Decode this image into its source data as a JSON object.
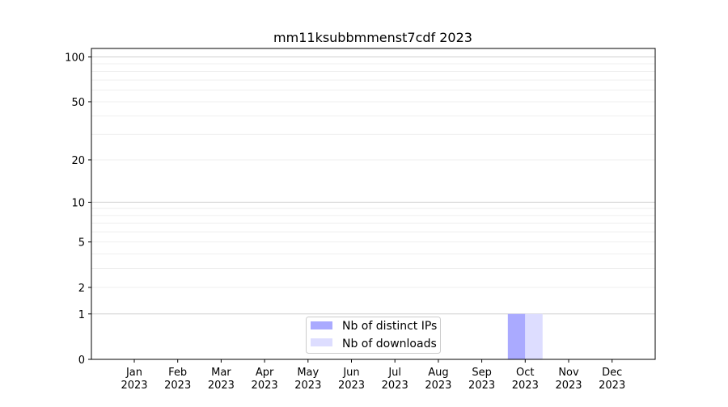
{
  "chart_data": {
    "type": "bar",
    "title": "mm11ksubbmmenst7cdf 2023",
    "xlabel": "",
    "ylabel": "",
    "y_scale": "log(1+y)",
    "ylim": [
      0,
      114
    ],
    "y_ticks": [
      0,
      1,
      2,
      5,
      10,
      20,
      50,
      100
    ],
    "grid": true,
    "legend_position": "lower-center",
    "categories": [
      "Jan\n2023",
      "Feb\n2023",
      "Mar\n2023",
      "Apr\n2023",
      "May\n2023",
      "Jun\n2023",
      "Jul\n2023",
      "Aug\n2023",
      "Sep\n2023",
      "Oct\n2023",
      "Nov\n2023",
      "Dec\n2023"
    ],
    "series": [
      {
        "name": "Nb of distinct IPs",
        "color": "#aaaaff",
        "values": [
          0,
          0,
          0,
          0,
          0,
          0,
          0,
          0,
          0,
          1,
          0,
          0
        ]
      },
      {
        "name": "Nb of downloads",
        "color": "#ddddff",
        "values": [
          0,
          0,
          0,
          0,
          0,
          0,
          0,
          0,
          0,
          1,
          0,
          0
        ]
      }
    ]
  }
}
